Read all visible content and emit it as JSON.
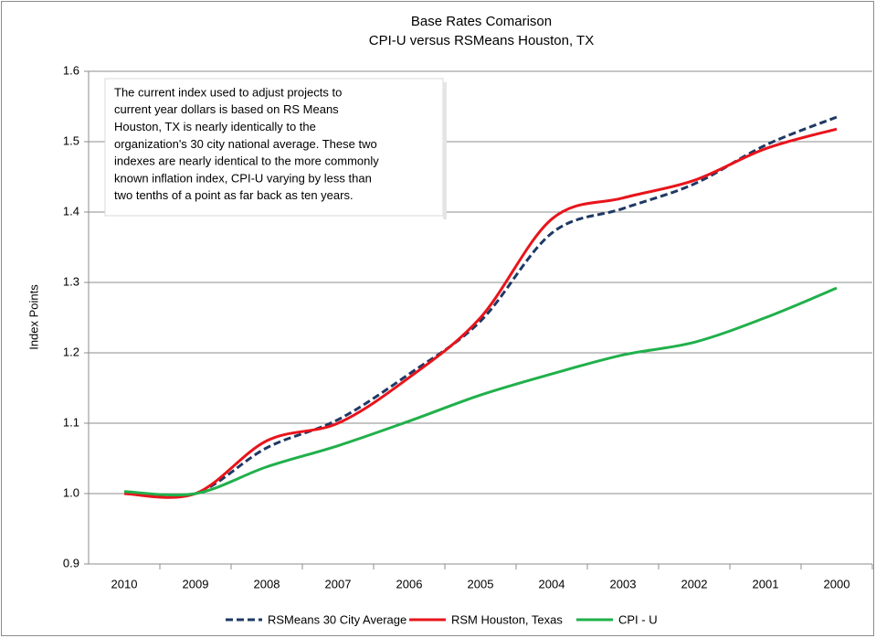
{
  "chart_data": {
    "type": "line",
    "title": "Base Rates Comarison",
    "subtitle": "CPI-U versus RSMeans Houston, TX",
    "y_label": "Index Points",
    "annotation": [
      "The current index used to adjust projects to",
      "current year dollars is based on RS Means",
      "Houston, TX is nearly identically to the",
      "organization's 30 city national average.  These two",
      "indexes are nearly identical to the more commonly",
      "known inflation index, CPI-U varying by less than",
      "two tenths of a point as far back as ten years."
    ],
    "categories": [
      "2010",
      "2009",
      "2008",
      "2007",
      "2006",
      "2005",
      "2004",
      "2003",
      "2002",
      "2001",
      "2000"
    ],
    "series": [
      {
        "name": "RSMeans 30 City Average",
        "color": "#1f3864",
        "dashed": true,
        "values": [
          1.0,
          1.0,
          1.065,
          1.105,
          1.17,
          1.245,
          1.37,
          1.405,
          1.44,
          1.495,
          1.535
        ]
      },
      {
        "name": "RSM Houston, Texas",
        "color": "#e8141b",
        "dashed": false,
        "values": [
          1.0,
          1.0,
          1.075,
          1.1,
          1.165,
          1.25,
          1.39,
          1.42,
          1.445,
          1.49,
          1.518
        ]
      },
      {
        "name": "CPI - U",
        "color": "#20b04b",
        "dashed": false,
        "values": [
          1.003,
          1.0,
          1.038,
          1.068,
          1.103,
          1.14,
          1.17,
          1.197,
          1.215,
          1.25,
          1.292
        ]
      }
    ],
    "ylim": [
      0.9,
      1.6
    ],
    "yticks": [
      0.9,
      {
        "value": 1.0,
        "label": "1.0"
      },
      1.1,
      1.2,
      1.3,
      1.4,
      1.5,
      1.6
    ],
    "grid": true,
    "legend": "bottom"
  }
}
